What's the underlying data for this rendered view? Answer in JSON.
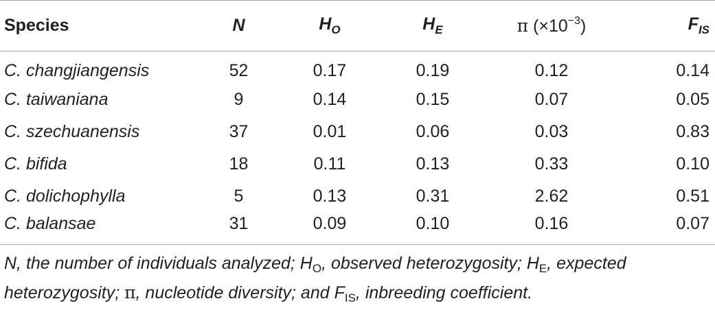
{
  "table": {
    "headers": {
      "species": "Species",
      "n": "N",
      "ho_main": "H",
      "ho_sub": "O",
      "he_main": "H",
      "he_sub": "E",
      "pi_symbol": "π",
      "pi_open": " (×10",
      "pi_exp": "−3",
      "pi_close": ")",
      "fis_main": "F",
      "fis_sub": "IS"
    },
    "rows": [
      {
        "species": "C. changjiangensis",
        "n": "52",
        "ho": "0.17",
        "he": "0.19",
        "pi": "0.12",
        "fis": "0.14"
      },
      {
        "species": "C. taiwaniana",
        "n": "9",
        "ho": "0.14",
        "he": "0.15",
        "pi": "0.07",
        "fis": "0.05"
      },
      {
        "species": "C. szechuanensis",
        "n": "37",
        "ho": "0.01",
        "he": "0.06",
        "pi": "0.03",
        "fis": "0.83"
      },
      {
        "species": "C. bifida",
        "n": "18",
        "ho": "0.11",
        "he": "0.13",
        "pi": "0.33",
        "fis": "0.10"
      },
      {
        "species": "C. dolichophylla",
        "n": "5",
        "ho": "0.13",
        "he": "0.31",
        "pi": "2.62",
        "fis": "0.51"
      },
      {
        "species": "C. balansae",
        "n": "31",
        "ho": "0.09",
        "he": "0.10",
        "pi": "0.16",
        "fis": "0.07"
      }
    ]
  },
  "footnote": {
    "part1": "N, the number of individuals analyzed; H",
    "ho_sub": "O",
    "part2": ", observed heterozygosity; H",
    "he_sub": "E",
    "part3": ", expected heterozygosity; ",
    "pi_symbol": "π",
    "part4": ", nucleotide diversity; and F",
    "fis_sub": "IS",
    "part5": ", inbreeding coefficient."
  }
}
